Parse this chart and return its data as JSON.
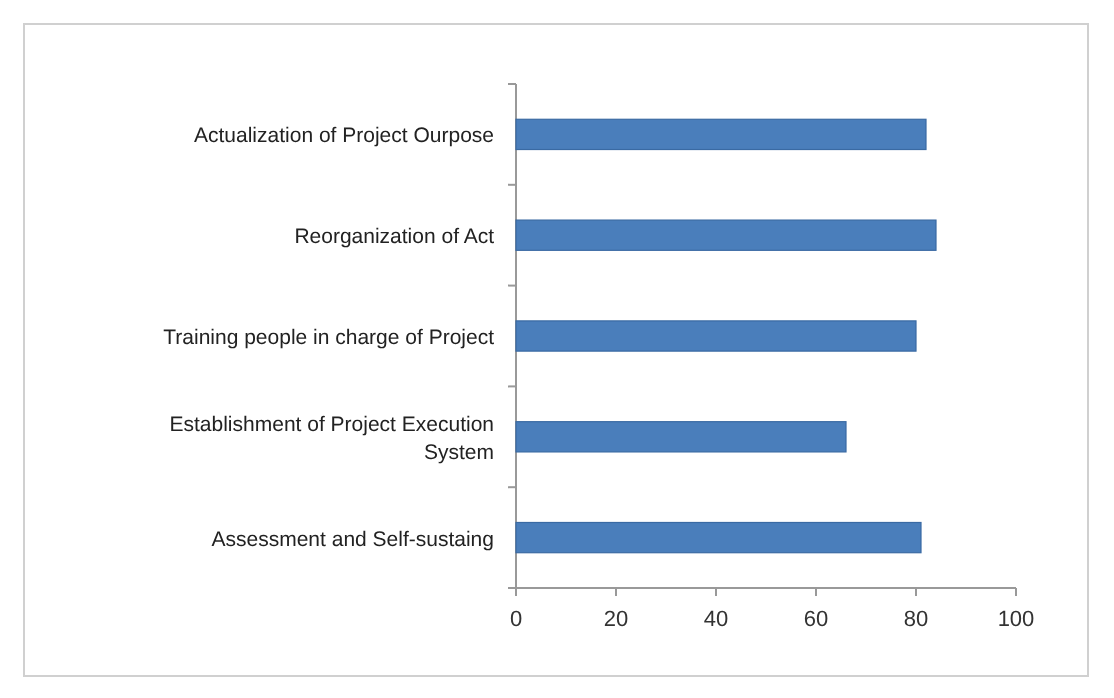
{
  "chart_data": {
    "type": "bar",
    "orientation": "horizontal",
    "categories": [
      "Actualization of Project Ourpose",
      "Reorganization of Act",
      "Training people in charge of Project",
      "Establishment of Project Execution System",
      "Assessment and Self-sustaing"
    ],
    "values": [
      82,
      84,
      80,
      66,
      81
    ],
    "color": "#4a7ebb",
    "xlim": [
      0,
      100
    ],
    "xticks": [
      0,
      20,
      40,
      60,
      80,
      100
    ],
    "grid": false
  }
}
